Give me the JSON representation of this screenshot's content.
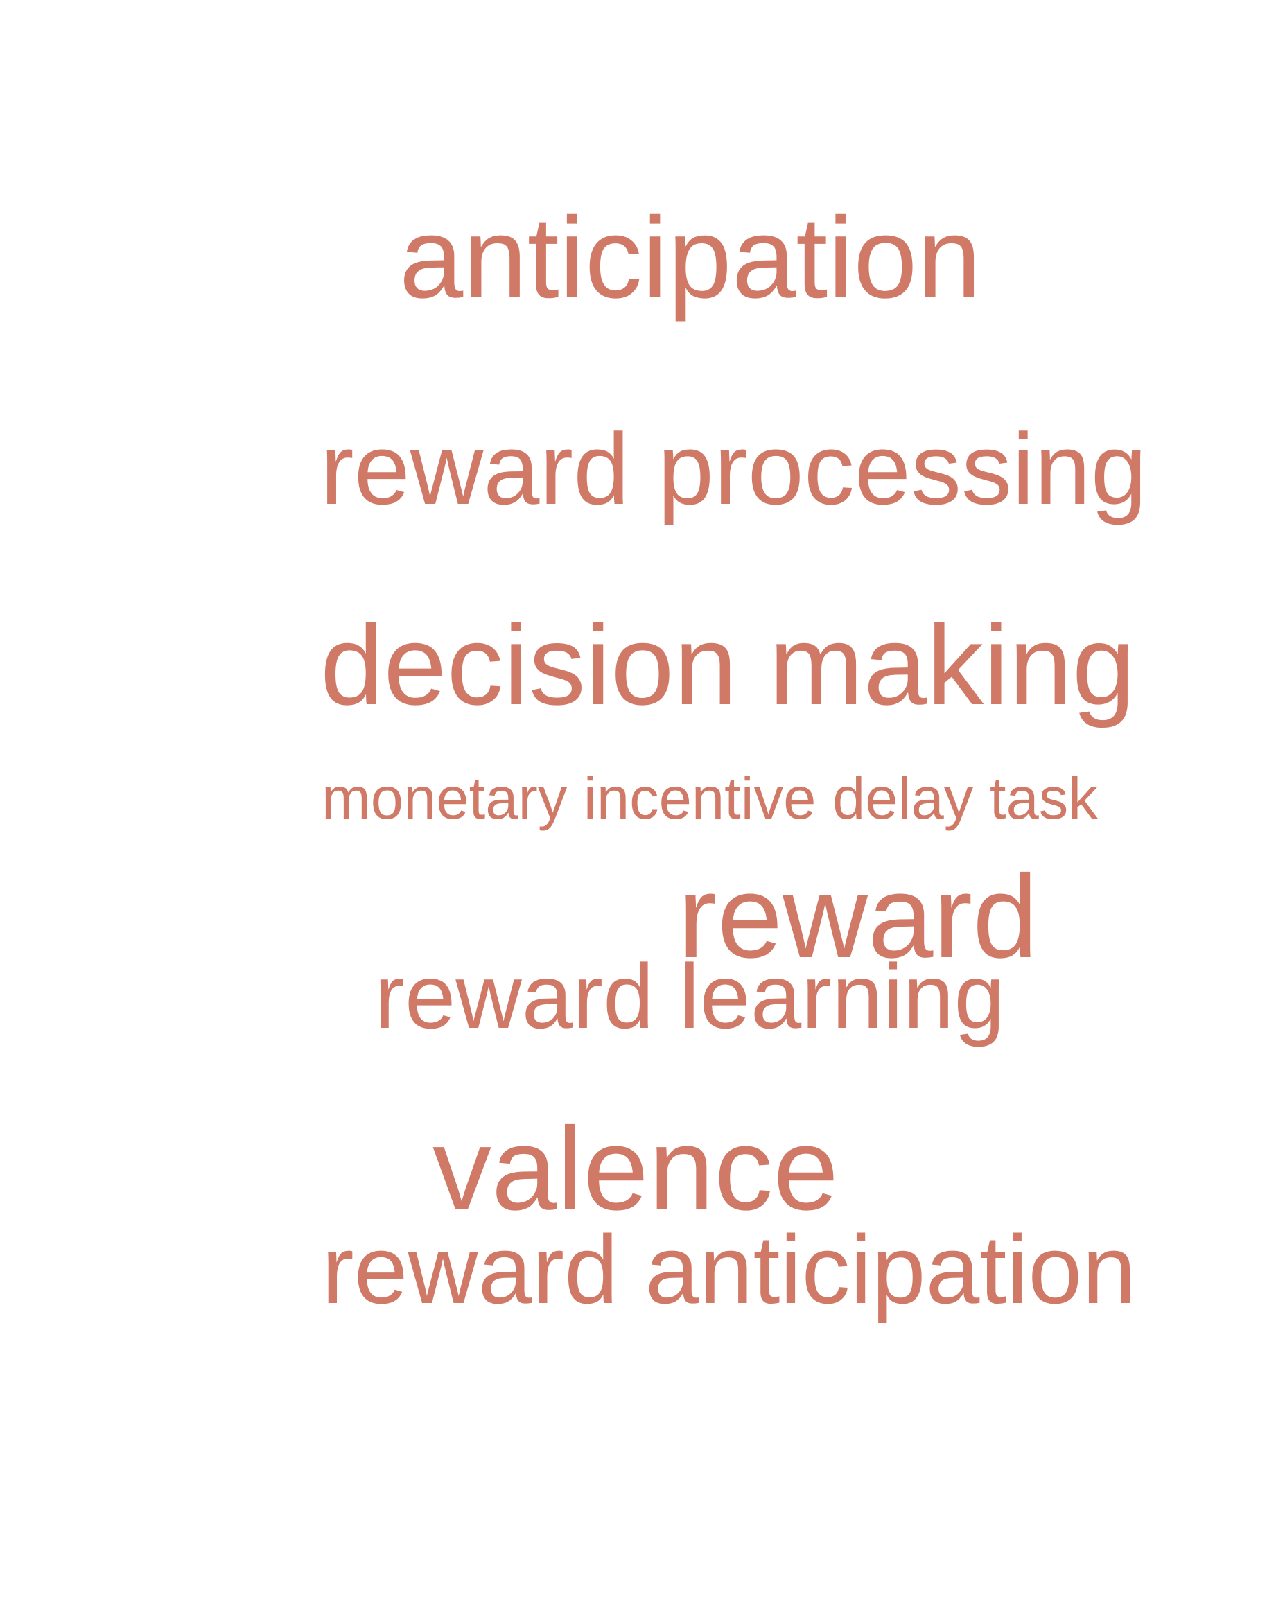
{
  "word_color": "#cf7966",
  "background": "#ffffff",
  "words": [
    {
      "text": "anticipation"
    },
    {
      "text": "reward processing"
    },
    {
      "text": "decision making"
    },
    {
      "text": "monetary incentive delay task"
    },
    {
      "text": "reward"
    },
    {
      "text": "reward learning"
    },
    {
      "text": "valence"
    },
    {
      "text": "reward anticipation"
    }
  ]
}
